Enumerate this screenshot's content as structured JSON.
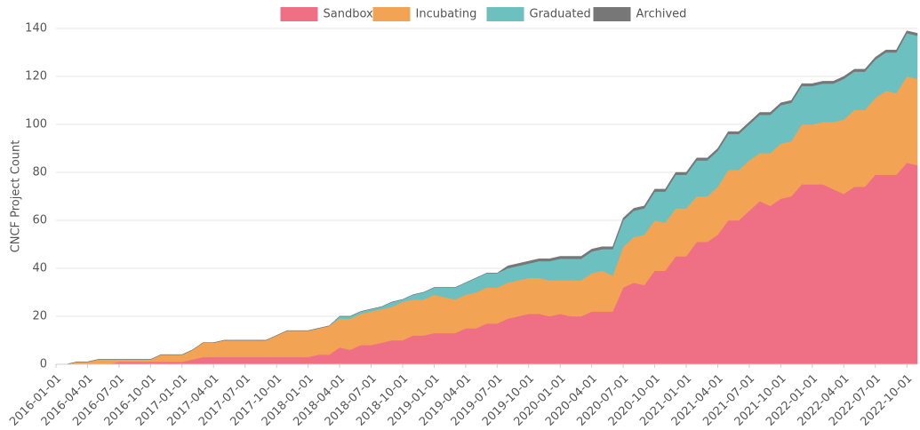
{
  "chart_data": {
    "type": "stacked_area",
    "y_label": "CNCF Project Count",
    "x": [
      "2016-01-01",
      "2016-02-01",
      "2016-03-01",
      "2016-04-01",
      "2016-05-01",
      "2016-06-01",
      "2016-07-01",
      "2016-08-01",
      "2016-09-01",
      "2016-10-01",
      "2016-11-01",
      "2016-12-01",
      "2017-01-01",
      "2017-02-01",
      "2017-03-01",
      "2017-04-01",
      "2017-05-01",
      "2017-06-01",
      "2017-07-01",
      "2017-08-01",
      "2017-09-01",
      "2017-10-01",
      "2017-11-01",
      "2017-12-01",
      "2018-01-01",
      "2018-02-01",
      "2018-03-01",
      "2018-04-01",
      "2018-05-01",
      "2018-06-01",
      "2018-07-01",
      "2018-08-01",
      "2018-09-01",
      "2018-10-01",
      "2018-11-01",
      "2018-12-01",
      "2019-01-01",
      "2019-02-01",
      "2019-03-01",
      "2019-04-01",
      "2019-05-01",
      "2019-06-01",
      "2019-07-01",
      "2019-08-01",
      "2019-09-01",
      "2019-10-01",
      "2019-11-01",
      "2019-12-01",
      "2020-01-01",
      "2020-02-01",
      "2020-03-01",
      "2020-04-01",
      "2020-05-01",
      "2020-06-01",
      "2020-07-01",
      "2020-08-01",
      "2020-09-01",
      "2020-10-01",
      "2020-11-01",
      "2020-12-01",
      "2021-01-01",
      "2021-02-01",
      "2021-03-01",
      "2021-04-01",
      "2021-05-01",
      "2021-06-01",
      "2021-07-01",
      "2021-08-01",
      "2021-09-01",
      "2021-10-01",
      "2021-11-01",
      "2021-12-01",
      "2022-01-01",
      "2022-02-01",
      "2022-03-01",
      "2022-04-01",
      "2022-05-01",
      "2022-06-01",
      "2022-07-01",
      "2022-08-01",
      "2022-09-01",
      "2022-10-01",
      "2022-11-01"
    ],
    "series": [
      {
        "name": "Sandbox",
        "color": "#ef6f84",
        "values": [
          0,
          0,
          0,
          0,
          0,
          0,
          1,
          1,
          1,
          1,
          1,
          1,
          1,
          2,
          3,
          3,
          3,
          3,
          3,
          3,
          3,
          3,
          3,
          3,
          3,
          4,
          4,
          7,
          6,
          8,
          8,
          9,
          10,
          10,
          12,
          12,
          13,
          13,
          13,
          15,
          15,
          17,
          17,
          19,
          20,
          21,
          21,
          20,
          21,
          20,
          20,
          22,
          22,
          22,
          32,
          34,
          33,
          39,
          39,
          45,
          45,
          51,
          51,
          54,
          60,
          60,
          64,
          68,
          66,
          69,
          70,
          75,
          75,
          75,
          73,
          71,
          74,
          74,
          79,
          79,
          79,
          84,
          83
        ]
      },
      {
        "name": "Incubating",
        "color": "#f2a354",
        "values": [
          0,
          0,
          1,
          1,
          2,
          2,
          1,
          1,
          1,
          1,
          3,
          3,
          3,
          4,
          6,
          6,
          7,
          7,
          7,
          7,
          7,
          9,
          11,
          11,
          11,
          11,
          12,
          12,
          13,
          13,
          14,
          14,
          14,
          16,
          15,
          15,
          16,
          15,
          14,
          14,
          15,
          15,
          15,
          15,
          15,
          15,
          15,
          15,
          14,
          15,
          15,
          16,
          17,
          15,
          17,
          19,
          21,
          21,
          20,
          20,
          20,
          19,
          19,
          20,
          21,
          21,
          21,
          20,
          22,
          23,
          23,
          25,
          25,
          26,
          28,
          31,
          32,
          32,
          32,
          35,
          34,
          36,
          36
        ]
      },
      {
        "name": "Graduated",
        "color": "#6cc0c0",
        "values": [
          0,
          0,
          0,
          0,
          0,
          0,
          0,
          0,
          0,
          0,
          0,
          0,
          0,
          0,
          0,
          0,
          0,
          0,
          0,
          0,
          0,
          0,
          0,
          0,
          0,
          0,
          0,
          1,
          1,
          1,
          1,
          1,
          2,
          1,
          2,
          3,
          3,
          4,
          5,
          5,
          6,
          6,
          6,
          6,
          6,
          6,
          7,
          8,
          9,
          9,
          9,
          9,
          9,
          11,
          11,
          11,
          11,
          12,
          13,
          14,
          14,
          15,
          15,
          15,
          15,
          15,
          15,
          16,
          16,
          16,
          16,
          16,
          16,
          16,
          16,
          17,
          16,
          16,
          16,
          16,
          17,
          18,
          18
        ]
      },
      {
        "name": "Archived",
        "color": "#777777",
        "values": [
          0,
          0,
          0,
          0,
          0,
          0,
          0,
          0,
          0,
          0,
          0,
          0,
          0,
          0,
          0,
          0,
          0,
          0,
          0,
          0,
          0,
          0,
          0,
          0,
          0,
          0,
          0,
          0,
          0,
          0,
          0,
          0,
          0,
          0,
          0,
          0,
          0,
          0,
          0,
          0,
          0,
          0,
          0,
          1,
          1,
          1,
          1,
          1,
          1,
          1,
          1,
          1,
          1,
          1,
          1,
          1,
          1,
          1,
          1,
          1,
          1,
          1,
          1,
          1,
          1,
          1,
          1,
          1,
          1,
          1,
          1,
          1,
          1,
          1,
          1,
          1,
          1,
          1,
          1,
          1,
          1,
          1,
          1
        ]
      }
    ],
    "xticks": [
      "2016-01-01",
      "2016-04-01",
      "2016-07-01",
      "2016-10-01",
      "2017-01-01",
      "2017-04-01",
      "2017-07-01",
      "2017-10-01",
      "2018-01-01",
      "2018-04-01",
      "2018-07-01",
      "2018-10-01",
      "2019-01-01",
      "2019-04-01",
      "2019-07-01",
      "2019-10-01",
      "2020-01-01",
      "2020-04-01",
      "2020-07-01",
      "2020-10-01",
      "2021-01-01",
      "2021-04-01",
      "2021-07-01",
      "2021-10-01",
      "2022-01-01",
      "2022-04-01",
      "2022-07-01",
      "2022-10-01"
    ],
    "ylim": [
      0,
      140
    ],
    "yticks": [
      0,
      20,
      40,
      60,
      80,
      100,
      120,
      140
    ],
    "grid": true,
    "legend": "top"
  }
}
